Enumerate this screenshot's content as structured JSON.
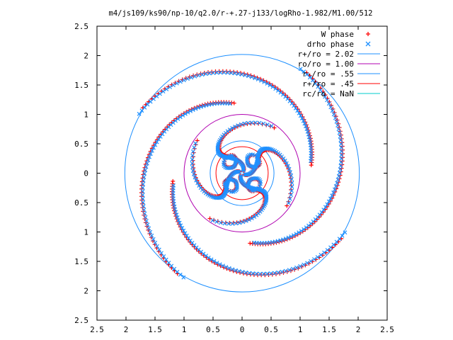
{
  "chart_data": {
    "type": "scatter",
    "title": "m4/js109/ks90/np-10/q2.0/r-+.27-j133/logRho-1.982/M1.00/512",
    "xlabel": "",
    "ylabel": "",
    "xlim": [
      -2.5,
      2.5
    ],
    "ylim": [
      -2.5,
      2.5
    ],
    "x_ticks": [
      "2.5",
      "2",
      "1.5",
      "1",
      "0.5",
      "0",
      "0.5",
      "1",
      "1.5",
      "2",
      "2.5"
    ],
    "y_ticks": [
      "2.5",
      "2",
      "1.5",
      "1",
      "0.5",
      "0",
      "0.5",
      "1",
      "1.5",
      "2",
      "2.5"
    ],
    "grid": false,
    "legend_position": "top-right",
    "legend": [
      {
        "label": "W phase",
        "marker": "+",
        "color": "#ff0000"
      },
      {
        "label": "drho phase",
        "marker": "x",
        "color": "#1e90ff"
      },
      {
        "label": "r+/ro = 2.02",
        "marker": "line",
        "color": "#1e90ff"
      },
      {
        "label": "ro/ro = 1.00",
        "marker": "line",
        "color": "#b000b0"
      },
      {
        "label": "r-/ro = .55",
        "marker": "line",
        "color": "#1e90ff"
      },
      {
        "label": "r+/ro = .45",
        "marker": "line",
        "color": "#ff0000"
      },
      {
        "label": "rc/ro = NaN",
        "marker": "line",
        "color": "#00cccc"
      }
    ],
    "circles": [
      {
        "name": "r+/ro = 2.02",
        "radius": 2.02,
        "color": "#1e90ff"
      },
      {
        "name": "ro/ro = 1.00",
        "radius": 1.0,
        "color": "#b000b0"
      },
      {
        "name": "r-/ro = .55",
        "radius": 0.55,
        "color": "#1e90ff"
      },
      {
        "name": "r+/ro = .45",
        "radius": 0.45,
        "color": "#ff0000"
      }
    ],
    "series": [
      {
        "name": "W phase",
        "color": "#ff0000",
        "arms": 4,
        "rotation_deg": -45
      },
      {
        "name": "drho phase",
        "color": "#1e90ff",
        "arms": 4,
        "rotation_deg": -45
      }
    ]
  }
}
